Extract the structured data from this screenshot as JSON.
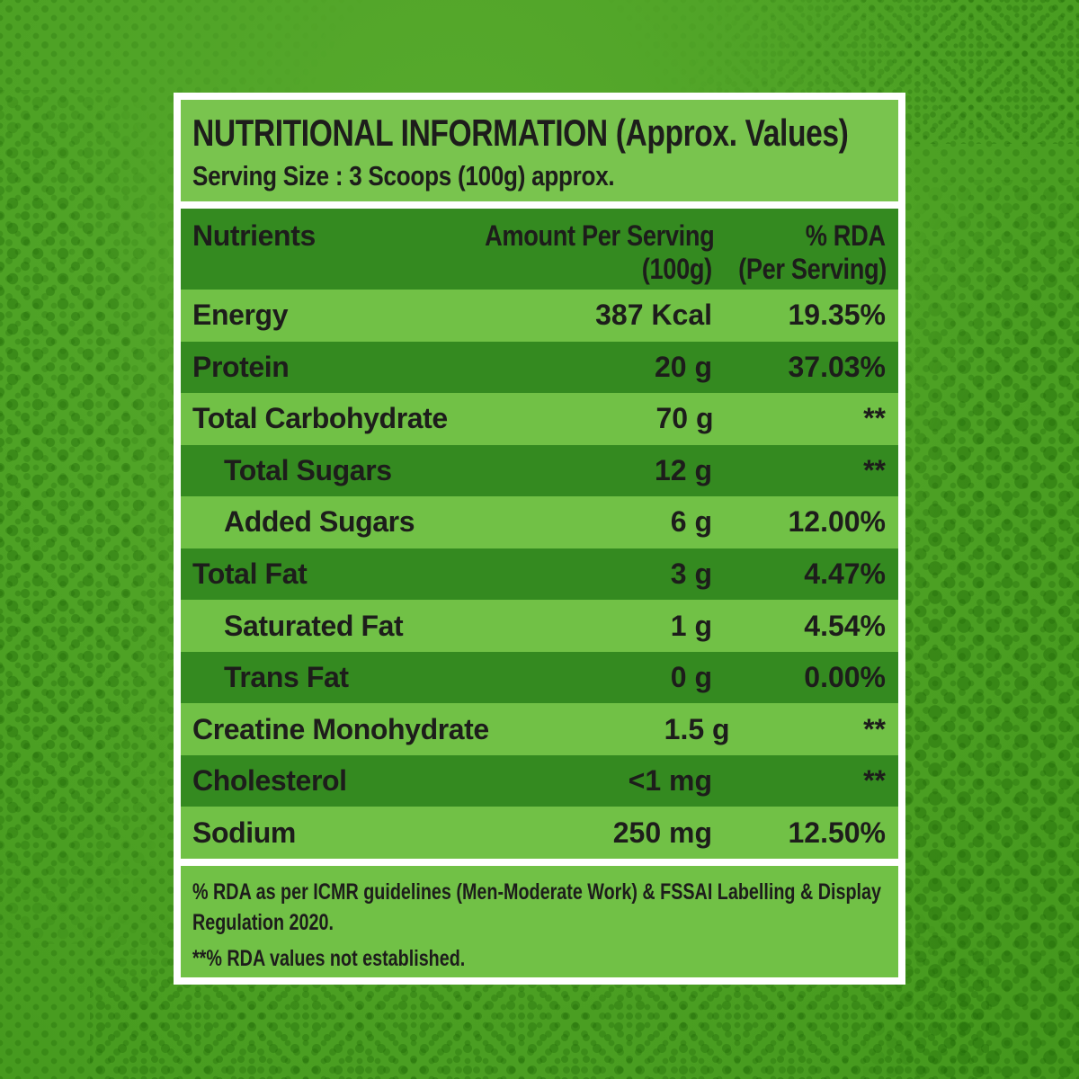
{
  "panel": {
    "title": "NUTRITIONAL INFORMATION (Approx. Values)",
    "serving_size": "Serving Size : 3 Scoops (100g) approx."
  },
  "table": {
    "headers": {
      "nutrients": "Nutrients",
      "amount_line1": "Amount Per Serving",
      "amount_line2": "(100g)",
      "rda_line1": "% RDA",
      "rda_line2": "(Per Serving)"
    },
    "rows": [
      {
        "label": "Energy",
        "amount": "387 Kcal",
        "rda": "19.35%",
        "indent": false
      },
      {
        "label": "Protein",
        "amount": "20 g",
        "rda": "37.03%",
        "indent": false
      },
      {
        "label": "Total Carbohydrate",
        "amount": "70 g",
        "rda": "**",
        "indent": false
      },
      {
        "label": "Total Sugars",
        "amount": "12 g",
        "rda": "**",
        "indent": true
      },
      {
        "label": "Added Sugars",
        "amount": "6 g",
        "rda": "12.00%",
        "indent": true
      },
      {
        "label": "Total Fat",
        "amount": "3 g",
        "rda": "4.47%",
        "indent": false
      },
      {
        "label": "Saturated Fat",
        "amount": "1 g",
        "rda": "4.54%",
        "indent": true
      },
      {
        "label": "Trans Fat",
        "amount": "0 g",
        "rda": "0.00%",
        "indent": true
      },
      {
        "label": "Creatine Monohydrate",
        "amount": "1.5 g",
        "rda": "**",
        "indent": false
      },
      {
        "label": "Cholesterol",
        "amount": "<1 mg",
        "rda": "**",
        "indent": false
      },
      {
        "label": "Sodium",
        "amount": "250 mg",
        "rda": "12.50%",
        "indent": false
      }
    ]
  },
  "footnotes": {
    "rda_note": "% RDA as per ICMR guidelines (Men-Moderate Work) & FSSAI Labelling & Display Regulation 2020.",
    "not_established_note": "**% RDA values not established."
  },
  "colors": {
    "background_green": "#4fa326",
    "halftone_dot_green": "#2b6a06",
    "light_green": "#71c146",
    "title_block_green": "#79c44e",
    "dark_green": "#348a20",
    "frame_white": "#ffffff",
    "text_black": "#1d1d1b"
  }
}
